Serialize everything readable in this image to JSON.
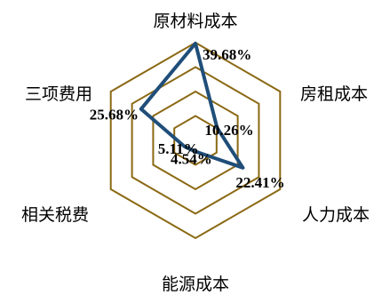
{
  "chart_data": {
    "type": "radar",
    "title": "",
    "categories": [
      "原材料成本",
      "房租成本",
      "人力成本",
      "能源成本",
      "相关税费",
      "三项费用"
    ],
    "series": [
      {
        "values": [
          39.68,
          10.26,
          22.41,
          4.54,
          5.11,
          25.68
        ],
        "labels": [
          "39.68%",
          "10.26%",
          "22.41%",
          "4.54%",
          "5.11%",
          "25.68%"
        ]
      }
    ],
    "rmax": 40,
    "rings": 4,
    "grid_color": "#8B6914",
    "series_color": "#1F4E79",
    "legend": "none"
  }
}
